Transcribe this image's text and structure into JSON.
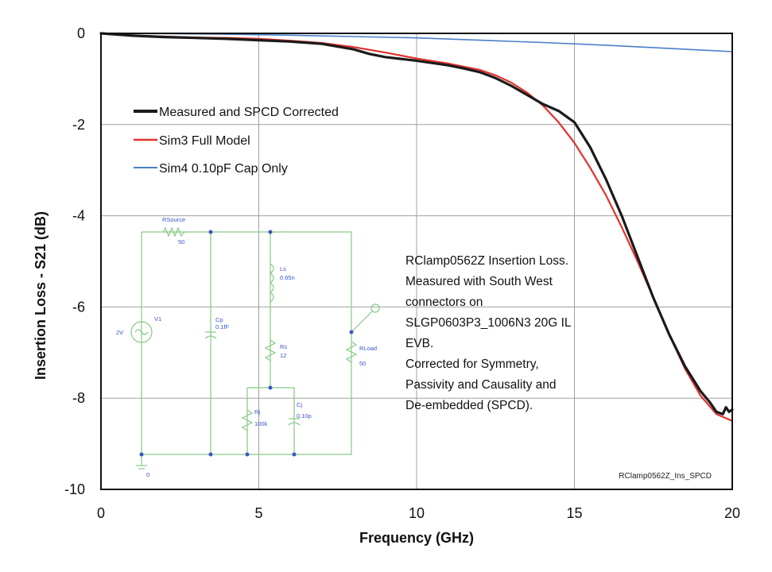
{
  "chart_data": {
    "type": "line",
    "title": "",
    "xlabel": "Frequency (GHz)",
    "ylabel": "Insertion Loss - S21 (dB)",
    "xlim": [
      0,
      20
    ],
    "ylim": [
      -10,
      0
    ],
    "x_ticks": [
      0,
      5,
      10,
      15,
      20
    ],
    "y_ticks": [
      0,
      -2,
      -4,
      -6,
      -8,
      -10
    ],
    "x_tick_labels": [
      "0",
      "5",
      "10",
      "15",
      "20"
    ],
    "y_tick_labels": [
      "0",
      "-2",
      "-4",
      "-6",
      "-8",
      "-10"
    ],
    "grid": true,
    "legend_position": "upper-left",
    "series": [
      {
        "name": "Measured and SPCD Corrected",
        "color": "#1a1a1a",
        "x": [
          0,
          1,
          2,
          3,
          4,
          5,
          6,
          7,
          8,
          8.5,
          9,
          9.5,
          10,
          10.5,
          11,
          11.5,
          12,
          12.5,
          13,
          13.5,
          14,
          14.5,
          15,
          15.5,
          16,
          16.5,
          17,
          17.5,
          18,
          18.5,
          19,
          19.3,
          19.5,
          19.7,
          19.8,
          19.9,
          20
        ],
        "y": [
          0,
          -0.05,
          -0.08,
          -0.1,
          -0.12,
          -0.15,
          -0.18,
          -0.23,
          -0.35,
          -0.45,
          -0.52,
          -0.56,
          -0.6,
          -0.65,
          -0.7,
          -0.77,
          -0.85,
          -0.98,
          -1.15,
          -1.35,
          -1.55,
          -1.7,
          -1.95,
          -2.5,
          -3.2,
          -4.0,
          -4.9,
          -5.8,
          -6.6,
          -7.3,
          -7.85,
          -8.1,
          -8.3,
          -8.35,
          -8.2,
          -8.3,
          -8.25
        ]
      },
      {
        "name": "Sim3 Full Model",
        "color": "#e0322f",
        "x": [
          0,
          1,
          2,
          3,
          4,
          5,
          6,
          7,
          8,
          9,
          10,
          11,
          12,
          12.5,
          13,
          13.5,
          14,
          14.5,
          15,
          15.5,
          16,
          16.5,
          17,
          17.5,
          18,
          18.5,
          19,
          19.5,
          20
        ],
        "y": [
          0,
          -0.04,
          -0.07,
          -0.09,
          -0.1,
          -0.12,
          -0.16,
          -0.21,
          -0.3,
          -0.42,
          -0.55,
          -0.66,
          -0.8,
          -0.92,
          -1.08,
          -1.3,
          -1.58,
          -1.95,
          -2.4,
          -2.95,
          -3.55,
          -4.25,
          -5.0,
          -5.8,
          -6.6,
          -7.35,
          -7.95,
          -8.35,
          -8.5
        ]
      },
      {
        "name": "Sim4 0.10pF Cap Only",
        "color": "#4a7fc8",
        "x": [
          0,
          2,
          4,
          6,
          8,
          10,
          12,
          14,
          16,
          18,
          20
        ],
        "y": [
          0,
          -0.005,
          -0.02,
          -0.04,
          -0.07,
          -0.1,
          -0.15,
          -0.2,
          -0.26,
          -0.33,
          -0.4
        ]
      }
    ],
    "annotation_lines": [
      "RClamp0562Z Insertion Loss.",
      "Measured with South West",
      "connectors on",
      "SLGP0603P3_1006N3 20G IL",
      "EVB.",
      "Corrected for Symmetry,",
      "Passivity and Causality and",
      "De-embedded (SPCD)."
    ],
    "watermark": "RClamp0562Z_Ins_SPCD",
    "schematic_labels": {
      "rsource": "RSource",
      "rsource_val": "50",
      "vsource": "V1",
      "vsource_val": "2V",
      "cp": "Cp",
      "cp_val": "0.1fF",
      "ls": "Ls",
      "ls_val": "0.65n",
      "rs": "Rs",
      "rs_val": "12",
      "rj": "Rj",
      "rj_val": "100k",
      "cj": "Cj",
      "cj_val": "0.10p",
      "rload": "RLoad",
      "rload_val": "50",
      "ground": "0"
    }
  }
}
